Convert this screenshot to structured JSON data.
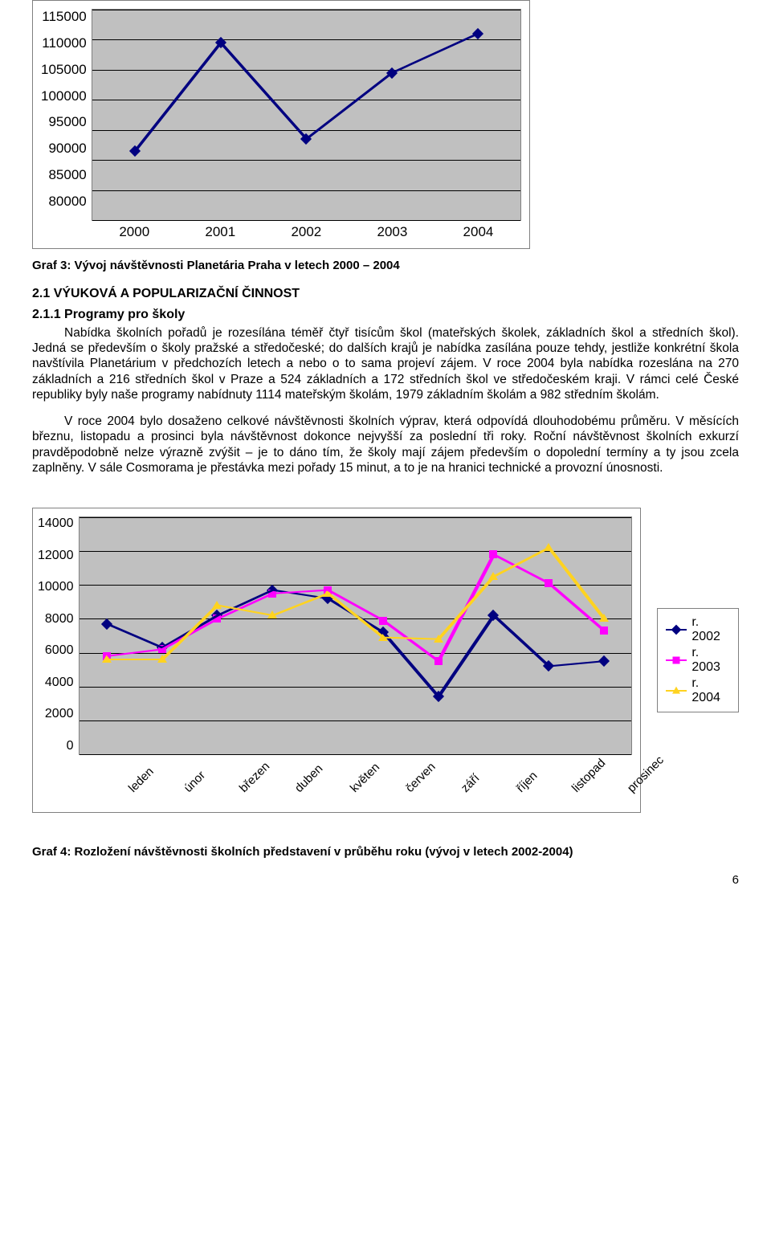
{
  "chart1": {
    "type": "line",
    "x_labels": [
      "2000",
      "2001",
      "2002",
      "2003",
      "2004"
    ],
    "y_ticks": [
      80000,
      85000,
      90000,
      95000,
      100000,
      105000,
      110000,
      115000
    ],
    "ymin": 80000,
    "ymax": 115000,
    "values": [
      91500,
      109500,
      93500,
      104500,
      111000
    ],
    "line_color": "#000080",
    "marker_style": "diamond",
    "marker_color": "#000080",
    "background": "#c0c0c0",
    "grid_color": "#000000",
    "tick_fontsize": 17
  },
  "caption1": "Graf 3: Vývoj návštěvnosti Planetária Praha v letech 2000 – 2004",
  "heading_section": "2.1 VÝUKOVÁ A POPULARIZAČNÍ ČINNOST",
  "heading_sub": "2.1.1 Programy pro školy",
  "paragraph1": "Nabídka školních pořadů je rozesílána téměř čtyř tisícům škol (mateřských školek, základních škol a středních škol). Jedná se především o školy pražské a středočeské; do dalších krajů je nabídka zasílána pouze tehdy, jestliže konkrétní škola navštívila Planetárium v předchozích letech a nebo o to sama projeví zájem. V roce 2004 byla nabídka rozeslána na 270 základních a 216 středních škol v Praze a 524 základních a 172 středních škol ve středočeském kraji. V rámci celé České republiky byly naše programy nabídnuty 1114 mateřským školám, 1979 základním školám a 982 středním školám.",
  "paragraph2": "V roce 2004 bylo dosaženo celkové návštěvnosti školních výprav, která odpovídá dlouhodobému průměru. V měsících březnu, listopadu a prosinci byla návštěvnost dokonce nejvyšší za poslední tři roky. Roční návštěvnost školních exkurzí pravděpodobně nelze výrazně zvýšit – je to dáno tím, že školy mají zájem především o dopolední termíny a ty jsou zcela zaplněny. V sále Cosmorama je přestávka mezi pořady 15 minut, a to je na hranici technické a provozní únosnosti.",
  "chart2": {
    "type": "line",
    "x_labels": [
      "leden",
      "únor",
      "březen",
      "duben",
      "květen",
      "červen",
      "září",
      "říjen",
      "listopad",
      "prosinec"
    ],
    "y_ticks": [
      0,
      2000,
      4000,
      6000,
      8000,
      10000,
      12000,
      14000
    ],
    "ymin": 0,
    "ymax": 14000,
    "series": [
      {
        "name": "r. 2002",
        "color": "#000080",
        "marker": "diamond",
        "values": [
          7700,
          6300,
          8200,
          9700,
          9200,
          7200,
          3400,
          8200,
          5200,
          5500
        ]
      },
      {
        "name": "r. 2003",
        "color": "#ff00ff",
        "marker": "square",
        "values": [
          5800,
          6200,
          8000,
          9500,
          9700,
          7900,
          5500,
          11800,
          10100,
          7300
        ]
      },
      {
        "name": "r. 2004",
        "color": "#ffd320",
        "marker": "triangle",
        "values": [
          5600,
          5600,
          8800,
          8200,
          9500,
          6900,
          6800,
          10500,
          12200,
          8000
        ]
      }
    ],
    "background": "#c0c0c0",
    "grid_color": "#000000",
    "tick_fontsize": 16
  },
  "legend": {
    "items": [
      {
        "label": "r. 2002",
        "color": "#000080",
        "marker": "diamond"
      },
      {
        "label": "r. 2003",
        "color": "#ff00ff",
        "marker": "square"
      },
      {
        "label": "r. 2004",
        "color": "#ffd320",
        "marker": "triangle"
      }
    ]
  },
  "caption2": "Graf 4: Rozložení návštěvnosti školních představení v průběhu roku (vývoj v letech 2002-2004)",
  "page_number": "6"
}
